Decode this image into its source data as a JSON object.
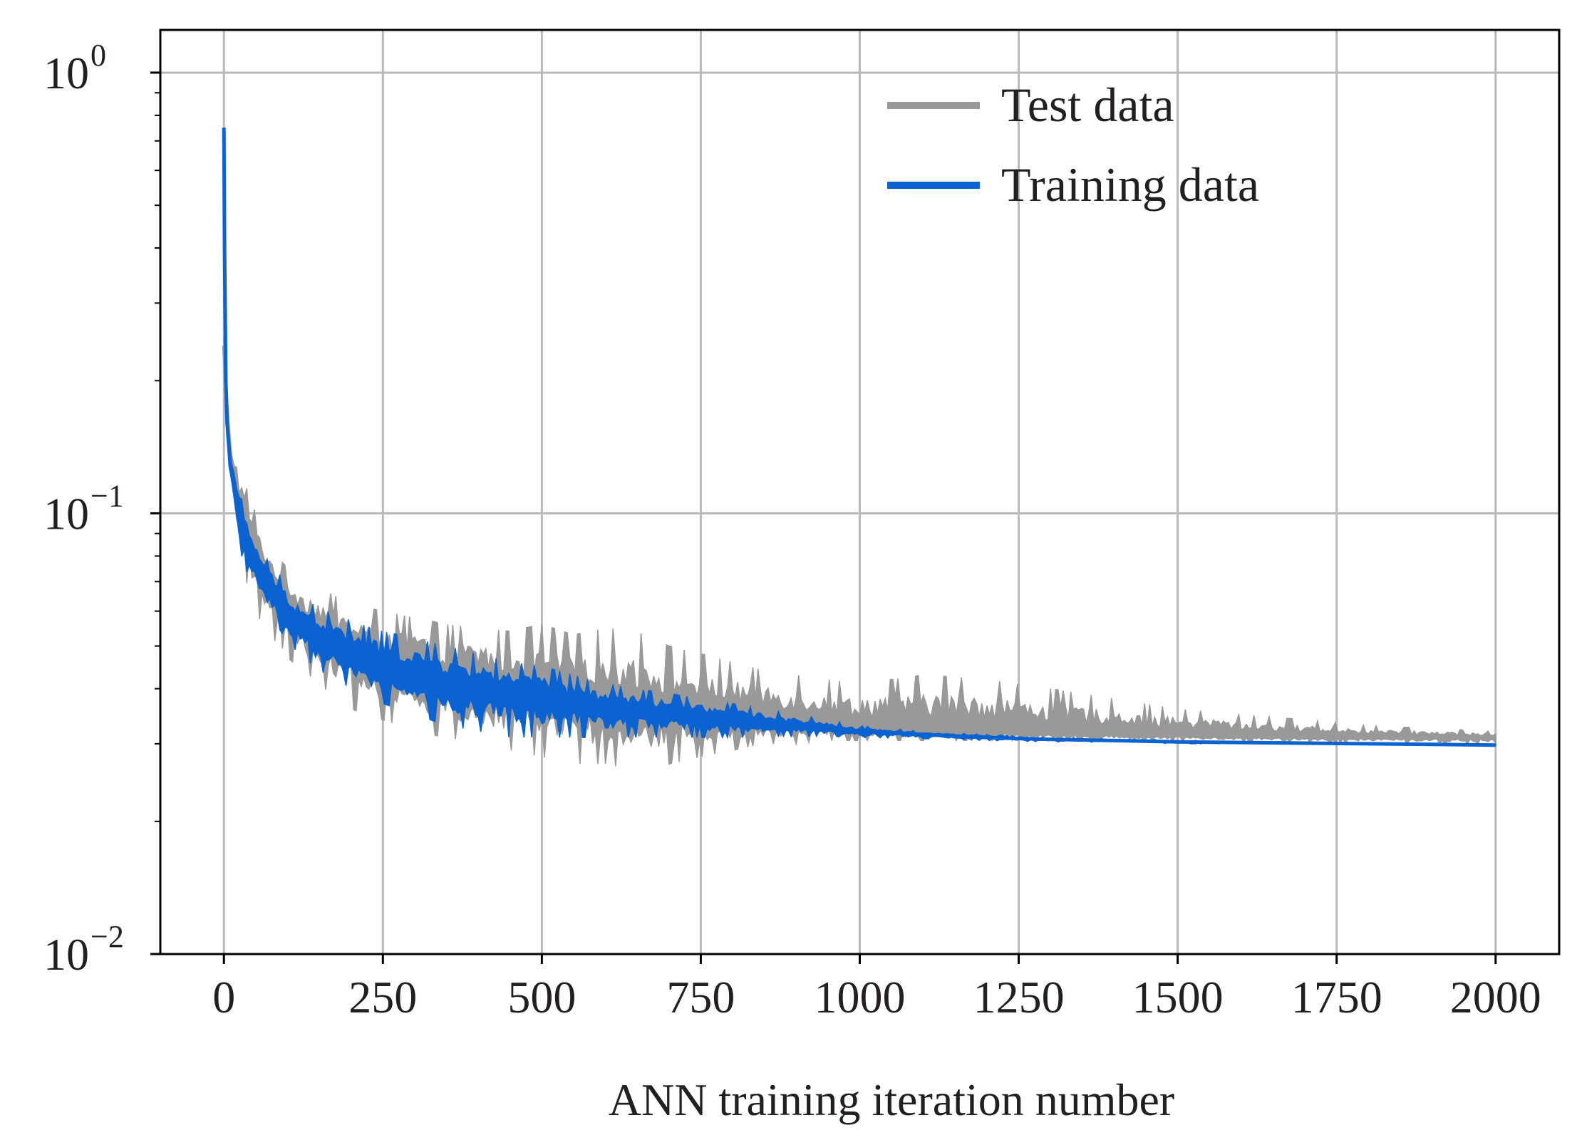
{
  "chart_data": {
    "type": "line",
    "title": "",
    "xlabel": "ANN training iteration number",
    "ylabel": "",
    "xlim": [
      -100,
      2100
    ],
    "ylim": [
      0.01,
      1.25
    ],
    "yscale": "log",
    "grid": true,
    "legend_position": "top-right",
    "x_ticks": [
      0,
      250,
      500,
      750,
      1000,
      1250,
      1500,
      1750,
      2000
    ],
    "x_tick_labels": [
      "0",
      "250",
      "500",
      "750",
      "1000",
      "1250",
      "1500",
      "1750",
      "2000"
    ],
    "y_ticks": [
      0.01,
      0.1,
      1
    ],
    "y_tick_labels": [
      {
        "base": "10",
        "exp": "−2"
      },
      {
        "base": "10",
        "exp": "−1"
      },
      {
        "base": "10",
        "exp": "0"
      }
    ],
    "series": [
      {
        "name": "Test data",
        "color": "#999999",
        "x": [
          0,
          5,
          10,
          20,
          30,
          40,
          50,
          60,
          75,
          90,
          100,
          125,
          150,
          175,
          200,
          250,
          300,
          350,
          400,
          450,
          500,
          550,
          600,
          650,
          700,
          750,
          800,
          850,
          900,
          950,
          1000,
          1100,
          1200,
          1300,
          1400,
          1500,
          1600,
          1700,
          1800,
          1900,
          2000
        ],
        "values": [
          0.24,
          0.17,
          0.13,
          0.11,
          0.097,
          0.089,
          0.082,
          0.076,
          0.07,
          0.065,
          0.062,
          0.057,
          0.054,
          0.051,
          0.049,
          0.046,
          0.044,
          0.042,
          0.041,
          0.04,
          0.039,
          0.038,
          0.037,
          0.036,
          0.0355,
          0.035,
          0.0345,
          0.034,
          0.0335,
          0.033,
          0.0325,
          0.0322,
          0.032,
          0.0318,
          0.0316,
          0.0314,
          0.0313,
          0.0312,
          0.0311,
          0.031,
          0.031
        ],
        "upper": [
          0.26,
          0.19,
          0.16,
          0.14,
          0.12,
          0.11,
          0.1,
          0.09,
          0.082,
          0.078,
          0.075,
          0.07,
          0.068,
          0.065,
          0.062,
          0.06,
          0.058,
          0.056,
          0.055,
          0.054,
          0.056,
          0.053,
          0.055,
          0.054,
          0.05,
          0.048,
          0.046,
          0.044,
          0.043,
          0.042,
          0.041,
          0.043,
          0.042,
          0.04,
          0.038,
          0.036,
          0.035,
          0.034,
          0.033,
          0.0325,
          0.032
        ],
        "lower": [
          0.2,
          0.15,
          0.11,
          0.09,
          0.075,
          0.066,
          0.06,
          0.056,
          0.052,
          0.05,
          0.047,
          0.044,
          0.041,
          0.038,
          0.036,
          0.034,
          0.032,
          0.031,
          0.03,
          0.029,
          0.028,
          0.027,
          0.027,
          0.026,
          0.027,
          0.028,
          0.029,
          0.03,
          0.03,
          0.0305,
          0.0305,
          0.0305,
          0.0305,
          0.0305,
          0.0305,
          0.0304,
          0.0303,
          0.0302,
          0.0301,
          0.03,
          0.03
        ]
      },
      {
        "name": "Training data",
        "color": "#0b62d1",
        "x": [
          0,
          1,
          3,
          5,
          10,
          20,
          30,
          40,
          50,
          60,
          75,
          90,
          100,
          125,
          150,
          175,
          200,
          250,
          300,
          350,
          400,
          450,
          500,
          550,
          600,
          650,
          700,
          750,
          800,
          850,
          900,
          950,
          1000,
          1100,
          1200,
          1300,
          1400,
          1500,
          1600,
          1700,
          1800,
          1900,
          2000
        ],
        "values": [
          0.75,
          0.4,
          0.2,
          0.16,
          0.13,
          0.105,
          0.092,
          0.084,
          0.078,
          0.073,
          0.067,
          0.063,
          0.06,
          0.055,
          0.052,
          0.05,
          0.048,
          0.045,
          0.043,
          0.041,
          0.04,
          0.039,
          0.038,
          0.037,
          0.036,
          0.0355,
          0.035,
          0.0345,
          0.034,
          0.0335,
          0.033,
          0.0325,
          0.032,
          0.0315,
          0.031,
          0.0307,
          0.0305,
          0.0303,
          0.0302,
          0.0301,
          0.03,
          0.0299,
          0.0298
        ],
        "upper": [
          0.75,
          0.4,
          0.22,
          0.18,
          0.15,
          0.12,
          0.105,
          0.096,
          0.088,
          0.082,
          0.076,
          0.072,
          0.069,
          0.064,
          0.061,
          0.059,
          0.057,
          0.054,
          0.052,
          0.05,
          0.048,
          0.046,
          0.045,
          0.043,
          0.041,
          0.04,
          0.039,
          0.038,
          0.037,
          0.036,
          0.035,
          0.034,
          0.033,
          0.032,
          0.0315,
          0.031,
          0.0308,
          0.0306,
          0.0304,
          0.0303,
          0.0302,
          0.03,
          0.0299
        ],
        "lower": [
          0.7,
          0.3,
          0.17,
          0.14,
          0.11,
          0.088,
          0.078,
          0.071,
          0.066,
          0.062,
          0.057,
          0.054,
          0.051,
          0.047,
          0.044,
          0.042,
          0.04,
          0.037,
          0.035,
          0.033,
          0.032,
          0.031,
          0.031,
          0.031,
          0.031,
          0.031,
          0.031,
          0.031,
          0.031,
          0.0312,
          0.0312,
          0.0312,
          0.031,
          0.0308,
          0.0305,
          0.0303,
          0.0302,
          0.03,
          0.03,
          0.0299,
          0.0298,
          0.0297,
          0.0296
        ]
      }
    ]
  }
}
